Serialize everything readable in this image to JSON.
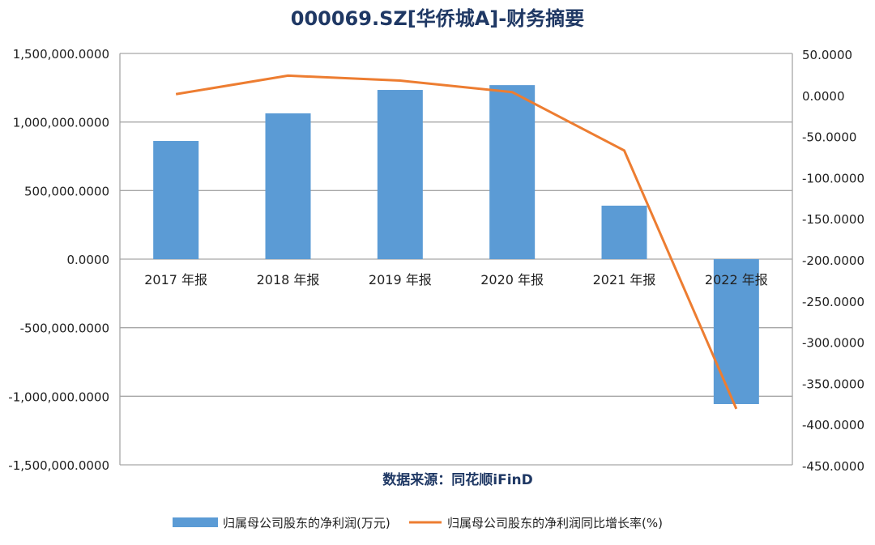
{
  "chart_data": {
    "type": "bar+line",
    "title": "000069.SZ[华侨城A]-财务摘要",
    "source": "数据来源：同花顺iFinD",
    "categories": [
      "2017 年报",
      "2018 年报",
      "2019 年报",
      "2020 年报",
      "2021 年报",
      "2022 年报"
    ],
    "series": [
      {
        "name": "归属母公司股东的净利润(万元)",
        "type": "bar",
        "axis": "left",
        "color": "#5b9bd5",
        "values": [
          862000,
          1063000,
          1234000,
          1269000,
          390000,
          -1057000
        ]
      },
      {
        "name": "归属母公司股东的净利润同比增长率(%)",
        "type": "line",
        "axis": "right",
        "color": "#ed7d31",
        "values": [
          1.5,
          24,
          18,
          4,
          -67,
          -381
        ]
      }
    ],
    "left_axis": {
      "ylim": [
        -1500000,
        1500000
      ],
      "tick_labels": [
        "1,500,000.0000",
        "1,000,000.0000",
        "500,000.0000",
        "0.0000",
        "-500,000.0000",
        "-1,000,000.0000",
        "-1,500,000.0000"
      ]
    },
    "right_axis": {
      "ylim": [
        -450,
        50
      ],
      "tick_labels": [
        "50.0000",
        "0.0000",
        "-50.0000",
        "-100.0000",
        "-150.0000",
        "-200.0000",
        "-250.0000",
        "-300.0000",
        "-350.0000",
        "-400.0000",
        "-450.0000"
      ]
    },
    "grid": true,
    "legend": "bottom",
    "colors": {
      "title": "#1f3864",
      "grid": "#a6a6a6"
    }
  }
}
